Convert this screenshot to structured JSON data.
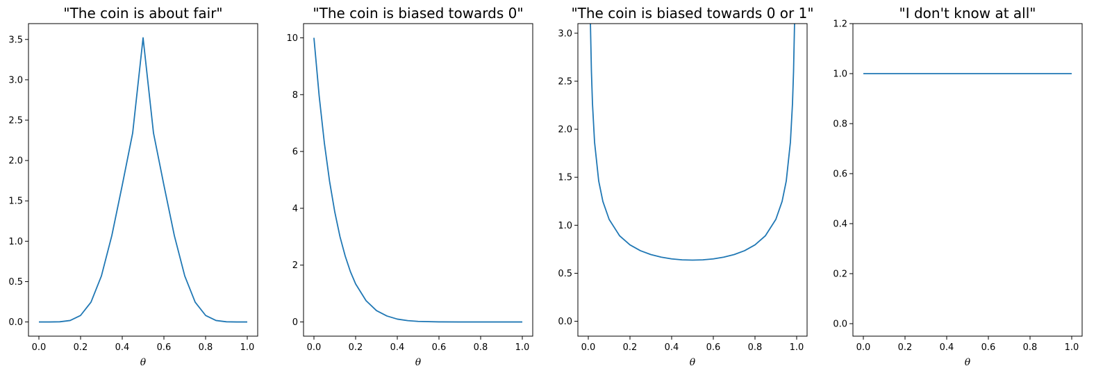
{
  "chart_data": [
    {
      "type": "line",
      "title": "\"The coin is about fair\"",
      "xlabel": "θ",
      "ylabel": "",
      "xlim": [
        -0.05,
        1.05
      ],
      "ylim": [
        -0.176,
        3.696
      ],
      "xticks": [
        "0.0",
        "0.2",
        "0.4",
        "0.6",
        "0.8",
        "1.0"
      ],
      "yticks": [
        "0.0",
        "0.5",
        "1.0",
        "1.5",
        "2.0",
        "2.5",
        "3.0",
        "3.5"
      ],
      "grid": false,
      "series": [
        {
          "x": [
            0.0,
            0.05,
            0.1,
            0.15,
            0.2,
            0.25,
            0.3,
            0.35,
            0.4,
            0.45,
            0.5,
            0.55,
            0.6,
            0.65,
            0.7,
            0.75,
            0.8,
            0.85,
            0.9,
            0.95,
            1.0
          ],
          "y": [
            0.0,
            0.0,
            0.002,
            0.018,
            0.081,
            0.245,
            0.57,
            1.07,
            1.694,
            2.34,
            3.52,
            2.34,
            1.694,
            1.07,
            0.57,
            0.245,
            0.081,
            0.018,
            0.002,
            0.0,
            0.0
          ]
        }
      ]
    },
    {
      "type": "line",
      "title": "\"The coin is biased towards 0\"",
      "xlabel": "θ",
      "ylabel": "",
      "xlim": [
        -0.05,
        1.05
      ],
      "ylim": [
        -0.5,
        10.5
      ],
      "xticks": [
        "0.0",
        "0.2",
        "0.4",
        "0.6",
        "0.8",
        "1.0"
      ],
      "yticks": [
        "0",
        "2",
        "4",
        "6",
        "8",
        "10"
      ],
      "grid": false,
      "series": [
        {
          "x": [
            0.0,
            0.025,
            0.05,
            0.075,
            0.1,
            0.125,
            0.15,
            0.175,
            0.2,
            0.25,
            0.3,
            0.35,
            0.4,
            0.45,
            0.5,
            0.6,
            0.7,
            0.8,
            0.9,
            1.0
          ],
          "y": [
            10.0,
            7.96,
            6.3,
            4.95,
            3.87,
            3.0,
            2.32,
            1.77,
            1.34,
            0.75,
            0.4,
            0.21,
            0.1,
            0.046,
            0.02,
            0.003,
            0.0,
            0.0,
            0.0,
            0.0
          ]
        }
      ]
    },
    {
      "type": "line",
      "title": "\"The coin is biased towards 0 or 1\"",
      "xlabel": "θ",
      "ylabel": "",
      "xlim": [
        -0.05,
        1.05
      ],
      "ylim": [
        -0.155,
        3.1
      ],
      "xticks": [
        "0.0",
        "0.2",
        "0.4",
        "0.6",
        "0.8",
        "1.0"
      ],
      "yticks": [
        "0.0",
        "0.5",
        "1.0",
        "1.5",
        "2.0",
        "2.5",
        "3.0"
      ],
      "grid": false,
      "series": [
        {
          "x": [
            0.0102,
            0.015,
            0.02,
            0.03,
            0.05,
            0.07,
            0.1,
            0.15,
            0.2,
            0.25,
            0.3,
            0.35,
            0.4,
            0.45,
            0.5,
            0.55,
            0.6,
            0.65,
            0.7,
            0.75,
            0.8,
            0.85,
            0.9,
            0.93,
            0.95,
            0.97,
            0.98,
            0.985,
            0.9898
          ],
          "y": [
            3.1,
            2.6,
            2.27,
            1.866,
            1.46,
            1.248,
            1.061,
            0.891,
            0.796,
            0.735,
            0.695,
            0.668,
            0.65,
            0.64,
            0.637,
            0.64,
            0.65,
            0.668,
            0.695,
            0.735,
            0.796,
            0.891,
            1.061,
            1.248,
            1.46,
            1.866,
            2.27,
            2.6,
            3.1
          ]
        }
      ]
    },
    {
      "type": "line",
      "title": "\"I don't know at all\"",
      "xlabel": "θ",
      "ylabel": "",
      "xlim": [
        -0.05,
        1.05
      ],
      "ylim": [
        -0.05,
        1.2
      ],
      "xticks": [
        "0.0",
        "0.2",
        "0.4",
        "0.6",
        "0.8",
        "1.0"
      ],
      "yticks": [
        "0.0",
        "0.2",
        "0.4",
        "0.6",
        "0.8",
        "1.0",
        "1.2"
      ],
      "grid": false,
      "series": [
        {
          "x": [
            0.0,
            1.0
          ],
          "y": [
            1.0,
            1.0
          ]
        }
      ]
    }
  ]
}
